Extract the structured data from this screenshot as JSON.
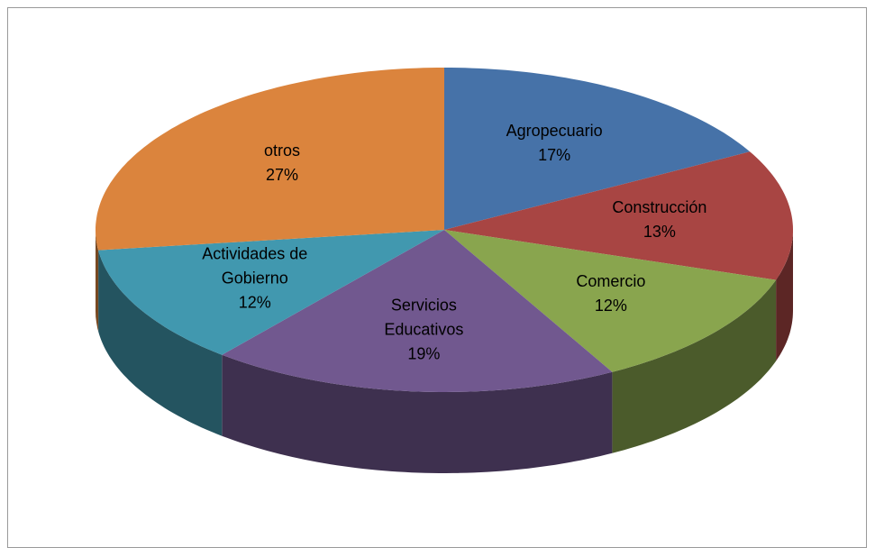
{
  "chart_data": {
    "type": "pie3d",
    "categories": [
      "Agropecuario",
      "Construcción",
      "Comercio",
      "Servicios Educativos",
      "Actividades de Gobierno",
      "otros"
    ],
    "values": [
      17,
      13,
      12,
      19,
      12,
      27
    ],
    "value_labels": [
      "17%",
      "13%",
      "12%",
      "19%",
      "12%",
      "27%"
    ],
    "colors": [
      "#4672a8",
      "#a84543",
      "#89a54e",
      "#71588f",
      "#4198af",
      "#db843d"
    ]
  }
}
